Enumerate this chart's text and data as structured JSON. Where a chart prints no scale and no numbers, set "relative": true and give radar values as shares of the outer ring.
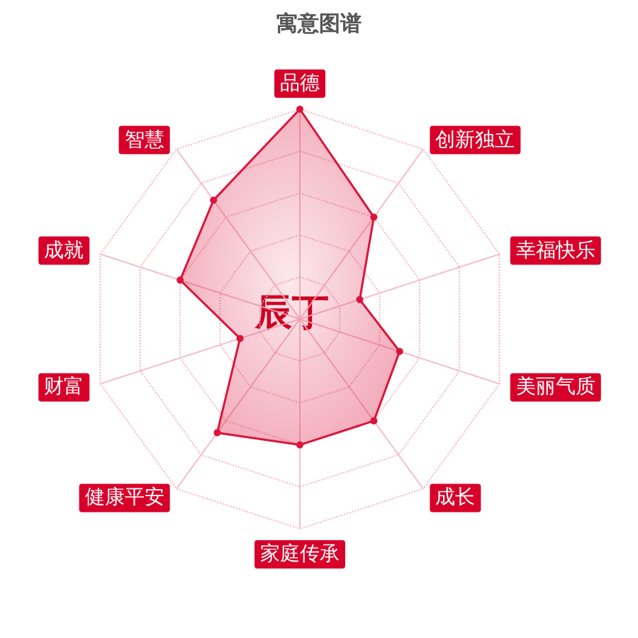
{
  "chart_data": {
    "type": "radar",
    "title": "寓意图谱",
    "relative": true,
    "grid": true,
    "marker": "circle",
    "categories": [
      "品德",
      "创新独立",
      "幸福快乐",
      "美丽气质",
      "成长",
      "家庭传承",
      "健康平安",
      "财富",
      "成就",
      "智慧"
    ],
    "annotations": [
      "辰丁"
    ],
    "series": [
      {
        "color": "#dc143c",
        "values": [
          1,
          0.6,
          0.3,
          0.5,
          0.6,
          0.6,
          0.67,
          0.3,
          0.6,
          0.7
        ]
      }
    ]
  }
}
